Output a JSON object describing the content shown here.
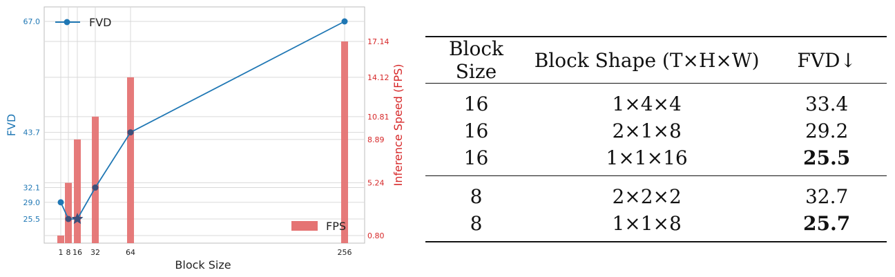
{
  "chart_data": {
    "type": "bar+line",
    "xlabel": "Block Size",
    "x_ticks": [
      "1",
      "8",
      "16",
      "32",
      "64",
      "256"
    ],
    "x_positions": [
      1,
      8,
      16,
      32,
      64,
      256
    ],
    "fvd_series": {
      "name": "FVD",
      "color": "#1f77b4",
      "x": [
        1,
        8,
        16,
        32,
        64,
        256
      ],
      "values": [
        29.0,
        25.5,
        25.5,
        32.1,
        43.7,
        67.0
      ],
      "marker": [
        "circle",
        "circle",
        "star",
        "circle",
        "circle",
        "circle"
      ]
    },
    "fps_series": {
      "name": "FPS",
      "color": "#e57373",
      "x": [
        1,
        8,
        16,
        32,
        64,
        256
      ],
      "values": [
        0.8,
        5.24,
        8.89,
        10.81,
        14.12,
        17.14
      ]
    },
    "left_axis": {
      "label": "FVD",
      "ticks": [
        "25.5",
        "29.0",
        "32.1",
        "43.7",
        "67.0"
      ],
      "color": "#1f77b4"
    },
    "right_axis": {
      "label": "Inference Speed (FPS)",
      "ticks": [
        "0.80",
        "5.24",
        "8.89",
        "10.81",
        "14.12",
        "17.14"
      ],
      "color": "#d62728"
    },
    "legend_fvd": "FVD",
    "legend_fps": "FPS",
    "grid": true
  },
  "table": {
    "headers": [
      "Block Size",
      "Block Shape (T×H×W)",
      "FVD↓"
    ],
    "group1": [
      [
        "16",
        "1×4×4",
        "33.4"
      ],
      [
        "16",
        "2×1×8",
        "29.2"
      ],
      [
        "16",
        "1×1×16",
        "25.5"
      ]
    ],
    "group2": [
      [
        "8",
        "2×2×2",
        "32.7"
      ],
      [
        "8",
        "1×1×8",
        "25.7"
      ]
    ]
  }
}
